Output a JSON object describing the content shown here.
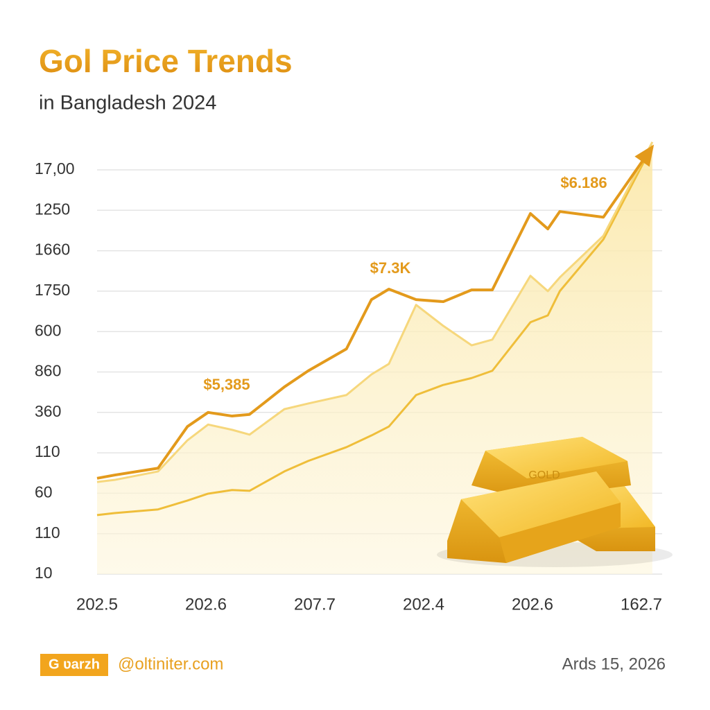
{
  "chart_data": {
    "type": "line",
    "title": "Gol Price Trends",
    "subtitle": "in Bangladesh 2024",
    "categories": [
      "202.5",
      "202.6",
      "207.7",
      "202.4",
      "202.6",
      "162.7"
    ],
    "x": [
      0,
      0.16,
      0.56,
      0.83,
      1.02,
      1.24,
      1.4,
      1.72,
      1.94,
      2.29,
      2.52,
      2.68,
      2.93,
      3.18,
      3.44,
      3.63,
      3.98,
      4.14,
      4.25,
      4.65,
      5.1
    ],
    "xlim": [
      0,
      5.19
    ],
    "ylim": [
      0,
      10
    ],
    "yticks": [
      {
        "value": 10,
        "label": "17,00"
      },
      {
        "value": 9,
        "label": "1250"
      },
      {
        "value": 8,
        "label": "1660"
      },
      {
        "value": 7,
        "label": "1750"
      },
      {
        "value": 6,
        "label": "600"
      },
      {
        "value": 5,
        "label": "860"
      },
      {
        "value": 4,
        "label": "360"
      },
      {
        "value": 3,
        "label": "110"
      },
      {
        "value": 2,
        "label": "60"
      },
      {
        "value": 1,
        "label": "110"
      },
      {
        "value": 0,
        "label": "10"
      }
    ],
    "grid": true,
    "series": [
      {
        "color": "#e39a1c",
        "values": [
          2.37,
          2.45,
          2.62,
          3.65,
          4.0,
          3.91,
          3.95,
          4.63,
          5.03,
          5.57,
          6.79,
          7.05,
          6.79,
          6.74,
          7.03,
          7.03,
          8.92,
          8.54,
          8.97,
          8.83,
          10.57
        ]
      },
      {
        "color": "#f6d77c",
        "values": [
          2.28,
          2.33,
          2.54,
          3.31,
          3.7,
          3.57,
          3.45,
          4.08,
          4.22,
          4.43,
          4.94,
          5.2,
          6.66,
          6.14,
          5.66,
          5.8,
          7.38,
          7.0,
          7.34,
          8.37,
          10.69
        ]
      },
      {
        "color": "#efbe3a",
        "values": [
          1.46,
          1.51,
          1.6,
          1.82,
          1.99,
          2.08,
          2.06,
          2.54,
          2.8,
          3.14,
          3.43,
          3.65,
          4.43,
          4.68,
          4.85,
          5.03,
          6.23,
          6.4,
          7.0,
          8.28,
          10.6
        ]
      }
    ],
    "annotations": [
      "$5,385",
      "$7.3K",
      "$6.186"
    ],
    "footer": {
      "badge": "G ʋarzh",
      "site": "@oltiniter.com",
      "date": "Ards 15, 2026"
    }
  }
}
